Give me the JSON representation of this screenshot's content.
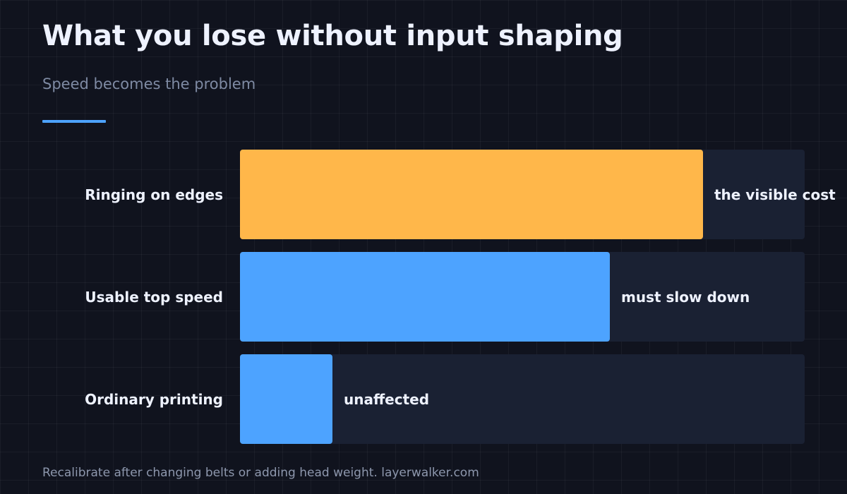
{
  "header": {
    "title": "What you lose without input shaping",
    "subtitle": "Speed becomes the problem"
  },
  "chart_data": {
    "type": "bar",
    "orientation": "horizontal",
    "categories": [
      "Ringing on edges",
      "Usable top speed",
      "Ordinary printing"
    ],
    "values": [
      82,
      65.5,
      16.4
    ],
    "value_labels": [
      "the visible cost",
      "must slow down",
      "unaffected"
    ],
    "bar_colors": [
      "#ffb74a",
      "#4da3ff",
      "#4da3ff"
    ],
    "xlim": [
      0,
      100
    ],
    "grid": false,
    "legend": "none"
  },
  "colors": {
    "background": "#10131e",
    "track": "#1a2133",
    "accent": "#4da3ff",
    "highlight": "#ffb74a"
  },
  "footer": {
    "note": "Recalibrate after changing belts or adding head weight. layerwalker.com"
  }
}
